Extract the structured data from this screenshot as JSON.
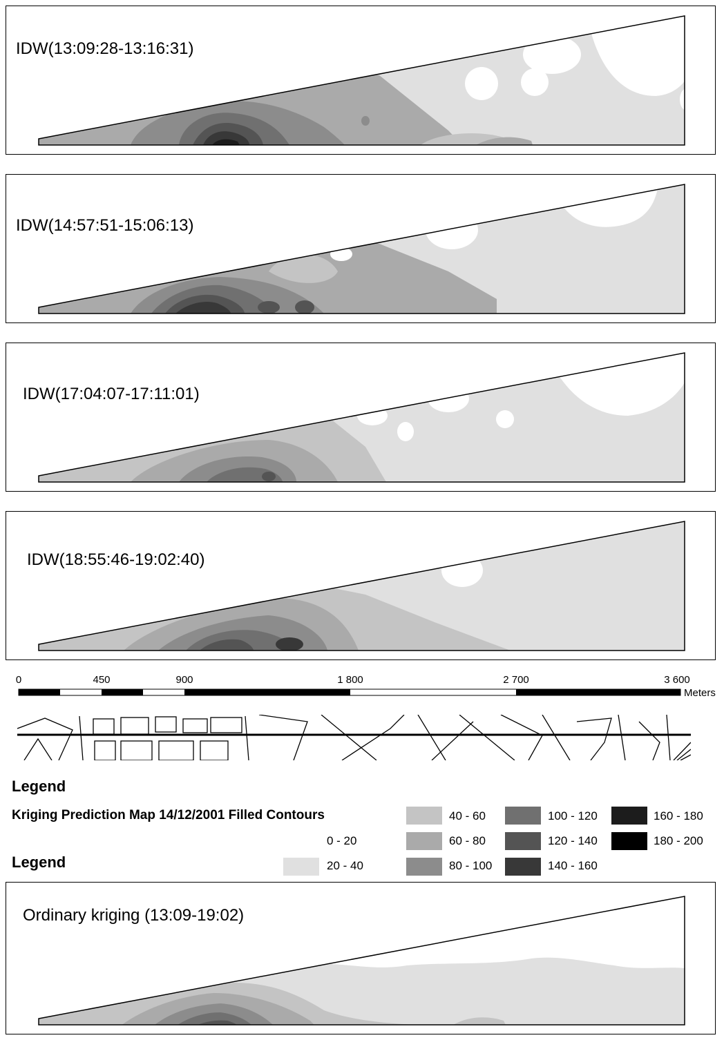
{
  "panels": [
    {
      "title": "IDW(13:09:28-13:16:31)"
    },
    {
      "title": "IDW(14:57:51-15:06:13)"
    },
    {
      "title": "IDW(17:04:07-17:11:01)"
    },
    {
      "title": "IDW(18:55:46-19:02:40)"
    },
    {
      "title": "Ordinary kriging (13:09-19:02)"
    }
  ],
  "scale": {
    "ticks": [
      "0",
      "450",
      "900",
      "1 800",
      "2 700",
      "3 600"
    ],
    "unit": "Meters"
  },
  "legend": {
    "heading": "Legend",
    "heading2": "Legend",
    "map_title": "Kriging  Prediction Map  14/12/2001  Filled Contours",
    "classes": [
      {
        "label": "0 - 20",
        "color": "#ffffff"
      },
      {
        "label": "20 - 40",
        "color": "#e0e0e0"
      },
      {
        "label": "40 - 60",
        "color": "#c4c4c4"
      },
      {
        "label": "60 - 80",
        "color": "#aaaaaa"
      },
      {
        "label": "80 - 100",
        "color": "#8c8c8c"
      },
      {
        "label": "100 - 120",
        "color": "#707070"
      },
      {
        "label": "120 - 140",
        "color": "#545454"
      },
      {
        "label": "140 - 160",
        "color": "#383838"
      },
      {
        "label": "160 - 180",
        "color": "#1c1c1c"
      },
      {
        "label": "180 - 200",
        "color": "#000000"
      }
    ]
  }
}
